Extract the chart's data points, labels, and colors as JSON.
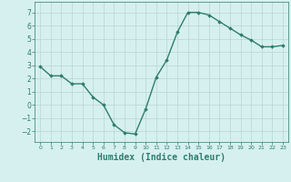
{
  "x": [
    0,
    1,
    2,
    3,
    4,
    5,
    6,
    7,
    8,
    9,
    10,
    11,
    12,
    13,
    14,
    15,
    16,
    17,
    18,
    19,
    20,
    21,
    22,
    23
  ],
  "y": [
    2.9,
    2.2,
    2.2,
    1.6,
    1.6,
    0.6,
    0.0,
    -1.5,
    -2.1,
    -2.2,
    -0.3,
    2.1,
    3.4,
    5.5,
    7.0,
    7.0,
    6.8,
    6.3,
    5.8,
    5.3,
    4.9,
    4.4,
    4.4,
    4.5
  ],
  "line_color": "#2e7d6e",
  "marker": "D",
  "marker_size": 1.8,
  "line_width": 1.0,
  "xlabel": "Humidex (Indice chaleur)",
  "xlabel_fontsize": 7,
  "bg_color": "#d6f0f0",
  "grid_color": "#b8d4d4",
  "tick_color": "#2e7d6e",
  "yticks": [
    -2,
    -1,
    0,
    1,
    2,
    3,
    4,
    5,
    6,
    7
  ],
  "xticks": [
    0,
    1,
    2,
    3,
    4,
    5,
    6,
    7,
    8,
    9,
    10,
    11,
    12,
    13,
    14,
    15,
    16,
    17,
    18,
    19,
    20,
    21,
    22,
    23
  ],
  "ylim": [
    -2.8,
    7.8
  ],
  "xlim": [
    -0.5,
    23.5
  ]
}
